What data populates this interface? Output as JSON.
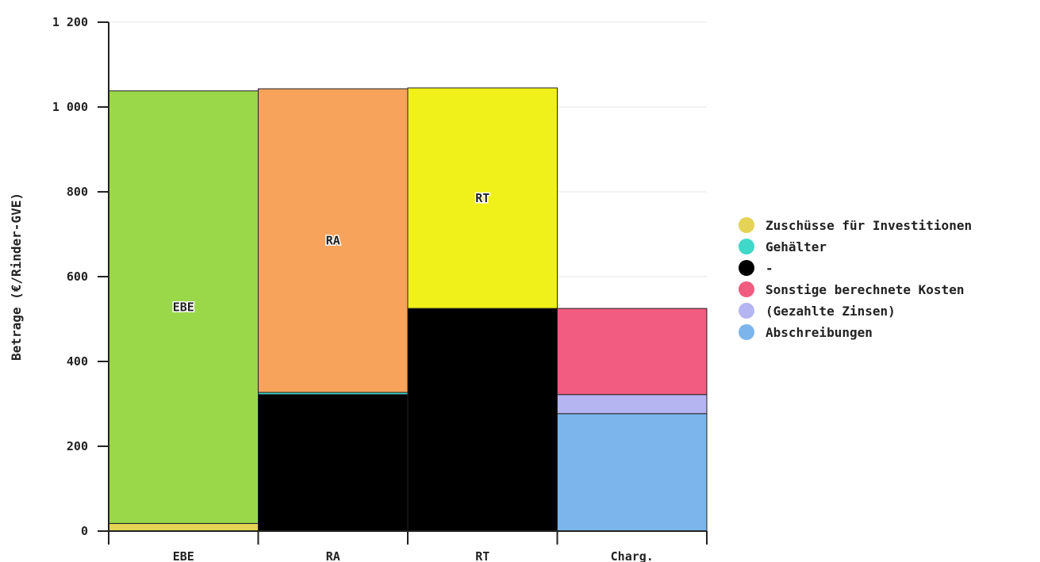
{
  "chart_data": {
    "type": "bar",
    "stacked": true,
    "ylabel": "Betrage (€/Rinder-GVE)",
    "xlabel": "",
    "ylim": [
      0,
      1200
    ],
    "yticks": [
      0,
      200,
      400,
      600,
      800,
      1000,
      1200
    ],
    "ytick_labels": [
      "0",
      "200",
      "400",
      "600",
      "800",
      "1 000",
      "1 200"
    ],
    "grid": true,
    "legend_position": "right",
    "categories": [
      "EBE",
      "RA",
      "RT",
      "Charg."
    ],
    "series": [
      {
        "name": "Abschreibungen",
        "color": "#7cb5ec",
        "values": [
          0,
          0,
          0,
          277
        ]
      },
      {
        "name": "(Gezahlte Zinsen)",
        "color": "#b5b5f2",
        "values": [
          0,
          0,
          0,
          45
        ]
      },
      {
        "name": "Sonstige berechnete Kosten",
        "color": "#f15c80",
        "values": [
          0,
          0,
          0,
          203
        ]
      },
      {
        "name": "-",
        "color": "#000000",
        "values": [
          0,
          322,
          525,
          0
        ]
      },
      {
        "name": "Gehälter",
        "color": "#40d8c8",
        "values": [
          0,
          5,
          0,
          0
        ]
      },
      {
        "name": "Zuschüsse für Investitionen",
        "color": "#e4d354",
        "values": [
          18,
          0,
          0,
          0
        ]
      },
      {
        "name": "EBE",
        "color": "#9ad849",
        "values": [
          1020,
          0,
          0,
          0
        ],
        "in_legend": false
      },
      {
        "name": "RA",
        "color": "#f7a35c",
        "values": [
          0,
          716,
          0,
          0
        ],
        "in_legend": false
      },
      {
        "name": "RT",
        "color": "#f0f01a",
        "values": [
          0,
          0,
          520,
          0
        ],
        "in_legend": false
      }
    ],
    "legend_entries": [
      "Zuschüsse für Investitionen",
      "Gehälter",
      "-",
      "Sonstige berechnete Kosten",
      "(Gezahlte Zinsen)",
      "Abschreibungen"
    ]
  }
}
